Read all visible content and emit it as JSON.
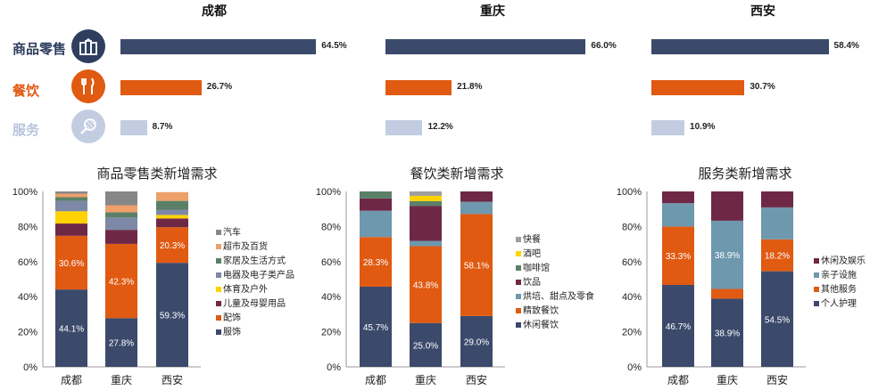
{
  "colors": {
    "navy": "#3b4a6b",
    "orange": "#e05a12",
    "light_blue": "#c2cde2",
    "retail_icon": "#2f3e5f",
    "food_icon": "#e05a12",
    "service_icon": "#c2cde2"
  },
  "cities": [
    "成都",
    "重庆",
    "西安"
  ],
  "categories": [
    {
      "label": "商品零售",
      "icon": "shopping-bags-icon"
    },
    {
      "label": "餐饮",
      "icon": "fork-knife-icon"
    },
    {
      "label": "服务",
      "icon": "tennis-racket-icon"
    }
  ],
  "chart_data": [
    {
      "type": "bar",
      "orientation": "horizontal",
      "categories": [
        "商品零售",
        "餐饮",
        "服务"
      ],
      "series": [
        {
          "name": "成都",
          "values": [
            64.5,
            26.7,
            8.7
          ],
          "labels": [
            "64.5%",
            "26.7%",
            "8.7%"
          ]
        },
        {
          "name": "重庆",
          "values": [
            66.0,
            21.8,
            12.2
          ],
          "labels": [
            "66.0%",
            "21.8%",
            "12.2%"
          ]
        },
        {
          "name": "西安",
          "values": [
            58.4,
            30.7,
            10.9
          ],
          "labels": [
            "58.4%",
            "30.7%",
            "10.9%"
          ]
        }
      ]
    },
    {
      "type": "bar",
      "stacked": true,
      "title": "商品零售类新增需求",
      "categories": [
        "成都",
        "重庆",
        "西安"
      ],
      "ylim": [
        0,
        100
      ],
      "yticks": [
        "0%",
        "20%",
        "40%",
        "60%",
        "80%",
        "100%"
      ],
      "series": [
        {
          "name": "服饰",
          "color": "#3b4a6b",
          "values": [
            44.1,
            27.8,
            59.3
          ],
          "labels": [
            "44.1%",
            "27.8%",
            "59.3%"
          ]
        },
        {
          "name": "配饰",
          "color": "#e05a12",
          "values": [
            30.6,
            42.3,
            20.3
          ],
          "labels": [
            "30.6%",
            "42.3%",
            "20.3%"
          ]
        },
        {
          "name": "儿童及母婴用品",
          "color": "#6e2846",
          "values": [
            7,
            8,
            5
          ]
        },
        {
          "name": "体育及户外",
          "color": "#ffd200",
          "values": [
            7,
            0,
            2
          ]
        },
        {
          "name": "电器及电子类产品",
          "color": "#7d88a6",
          "values": [
            6,
            7,
            3
          ]
        },
        {
          "name": "家居及生活方式",
          "color": "#5b8068",
          "values": [
            2,
            3,
            5
          ]
        },
        {
          "name": "超市及百货",
          "color": "#eda06a",
          "values": [
            2,
            4,
            5
          ]
        },
        {
          "name": "汽车",
          "color": "#878787",
          "values": [
            1.3,
            7.9,
            0
          ]
        }
      ]
    },
    {
      "type": "bar",
      "stacked": true,
      "title": "餐饮类新增需求",
      "categories": [
        "成都",
        "重庆",
        "西安"
      ],
      "ylim": [
        0,
        100
      ],
      "yticks": [
        "0%",
        "20%",
        "40%",
        "60%",
        "80%",
        "100%"
      ],
      "series": [
        {
          "name": "休闲餐饮",
          "color": "#3b4a6b",
          "values": [
            45.7,
            25.0,
            29.0
          ],
          "labels": [
            "45.7%",
            "25.0%",
            "29.0%"
          ]
        },
        {
          "name": "精致餐饮",
          "color": "#e05a12",
          "values": [
            28.3,
            43.8,
            58.1
          ],
          "labels": [
            "28.3%",
            "43.8%",
            "58.1%"
          ]
        },
        {
          "name": "烘培、甜点及零食",
          "color": "#6e98ae",
          "values": [
            15,
            3,
            7
          ]
        },
        {
          "name": "饮品",
          "color": "#6e2846",
          "values": [
            7,
            20,
            5.9
          ]
        },
        {
          "name": "咖啡馆",
          "color": "#5b8068",
          "values": [
            4,
            2.7,
            0
          ]
        },
        {
          "name": "酒吧",
          "color": "#ffd200",
          "values": [
            0,
            3,
            0
          ]
        },
        {
          "name": "快餐",
          "color": "#9e9e9e",
          "values": [
            0,
            2.5,
            0
          ]
        }
      ]
    },
    {
      "type": "bar",
      "stacked": true,
      "title": "服务类新增需求",
      "categories": [
        "成都",
        "重庆",
        "西安"
      ],
      "ylim": [
        0,
        100
      ],
      "yticks": [
        "0%",
        "20%",
        "40%",
        "60%",
        "80%",
        "100%"
      ],
      "series": [
        {
          "name": "个人护理",
          "color": "#3b4a6b",
          "values": [
            46.7,
            38.9,
            54.5
          ],
          "labels": [
            "46.7%",
            "38.9%",
            "54.5%"
          ]
        },
        {
          "name": "其他服务",
          "color": "#e05a12",
          "values": [
            33.3,
            5.5,
            18.2
          ],
          "labels": [
            "33.3%",
            "",
            "18.2%"
          ]
        },
        {
          "name": "亲子设施",
          "color": "#6e98ae",
          "values": [
            13.3,
            38.9,
            18.2
          ],
          "labels": [
            "",
            "38.9%",
            ""
          ]
        },
        {
          "name": "休闲及娱乐",
          "color": "#6e2846",
          "values": [
            6.7,
            16.7,
            9.1
          ]
        }
      ]
    }
  ]
}
